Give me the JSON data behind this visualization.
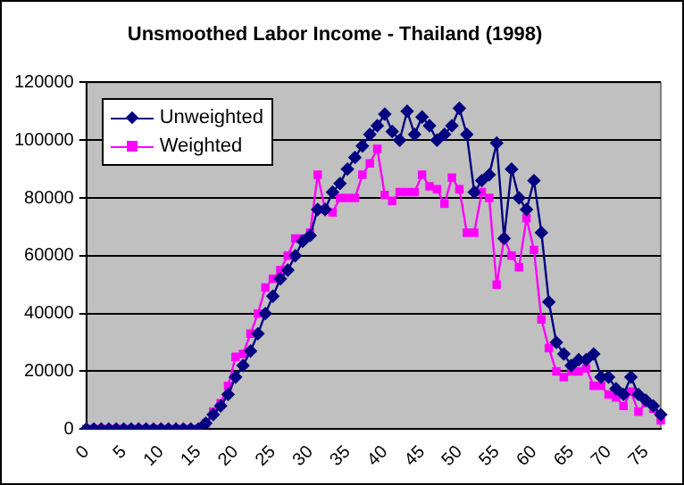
{
  "chart_data": {
    "type": "line",
    "title": "Unsmoothed Labor Income - Thailand (1998)",
    "categories": [
      "0",
      null,
      null,
      null,
      null,
      "5",
      null,
      null,
      null,
      null,
      "10",
      null,
      null,
      null,
      null,
      "15",
      null,
      null,
      null,
      null,
      "20",
      null,
      null,
      null,
      null,
      "25",
      null,
      null,
      null,
      null,
      "30",
      null,
      null,
      null,
      null,
      "35",
      null,
      null,
      null,
      null,
      "40",
      null,
      null,
      null,
      null,
      "45",
      null,
      null,
      null,
      null,
      "50",
      null,
      null,
      null,
      null,
      "55",
      null,
      null,
      null,
      null,
      "60",
      null,
      null,
      null,
      null,
      "65",
      null,
      null,
      null,
      null,
      "70",
      null,
      null,
      null,
      null,
      "75",
      null,
      null
    ],
    "series": [
      {
        "name": "Unweighted",
        "color": "#000080",
        "marker": "diamond",
        "values": [
          0,
          0,
          0,
          0,
          0,
          0,
          0,
          0,
          0,
          0,
          0,
          0,
          0,
          0,
          0,
          0,
          2000,
          5000,
          8000,
          12000,
          18000,
          22000,
          27000,
          33000,
          40000,
          46000,
          52000,
          55000,
          60000,
          65000,
          67000,
          76000,
          76000,
          82000,
          85000,
          90000,
          94000,
          98000,
          102000,
          105000,
          109000,
          103000,
          100000,
          110000,
          102000,
          108000,
          105000,
          100000,
          102000,
          105000,
          111000,
          102000,
          82000,
          86000,
          88000,
          99000,
          66000,
          90000,
          80000,
          76000,
          86000,
          68000,
          44000,
          30000,
          26000,
          22000,
          24000,
          24000,
          26000,
          18000,
          18000,
          14000,
          12000,
          18000,
          12000,
          10000,
          8000,
          5000
        ]
      },
      {
        "name": "Weighted",
        "color": "#ff00ff",
        "marker": "square",
        "values": [
          0,
          0,
          0,
          0,
          0,
          0,
          0,
          0,
          0,
          0,
          0,
          0,
          0,
          0,
          0,
          0,
          2000,
          6000,
          9000,
          15000,
          25000,
          26000,
          33000,
          40000,
          49000,
          52000,
          55000,
          60000,
          66000,
          66000,
          68000,
          88000,
          76000,
          75000,
          80000,
          80000,
          80000,
          88000,
          92000,
          97000,
          81000,
          79000,
          82000,
          82000,
          82000,
          88000,
          84000,
          83000,
          78000,
          87000,
          83000,
          68000,
          68000,
          82000,
          80000,
          50000,
          66000,
          60000,
          56000,
          73000,
          62000,
          38000,
          28000,
          20000,
          18000,
          20000,
          20000,
          21000,
          15000,
          15000,
          12000,
          11000,
          8000,
          13000,
          6000,
          9000,
          7000,
          3000
        ]
      }
    ],
    "ylim": [
      0,
      120000
    ],
    "yticks": [
      0,
      20000,
      40000,
      60000,
      80000,
      100000,
      120000
    ],
    "grid": "y",
    "legend": "top left"
  }
}
